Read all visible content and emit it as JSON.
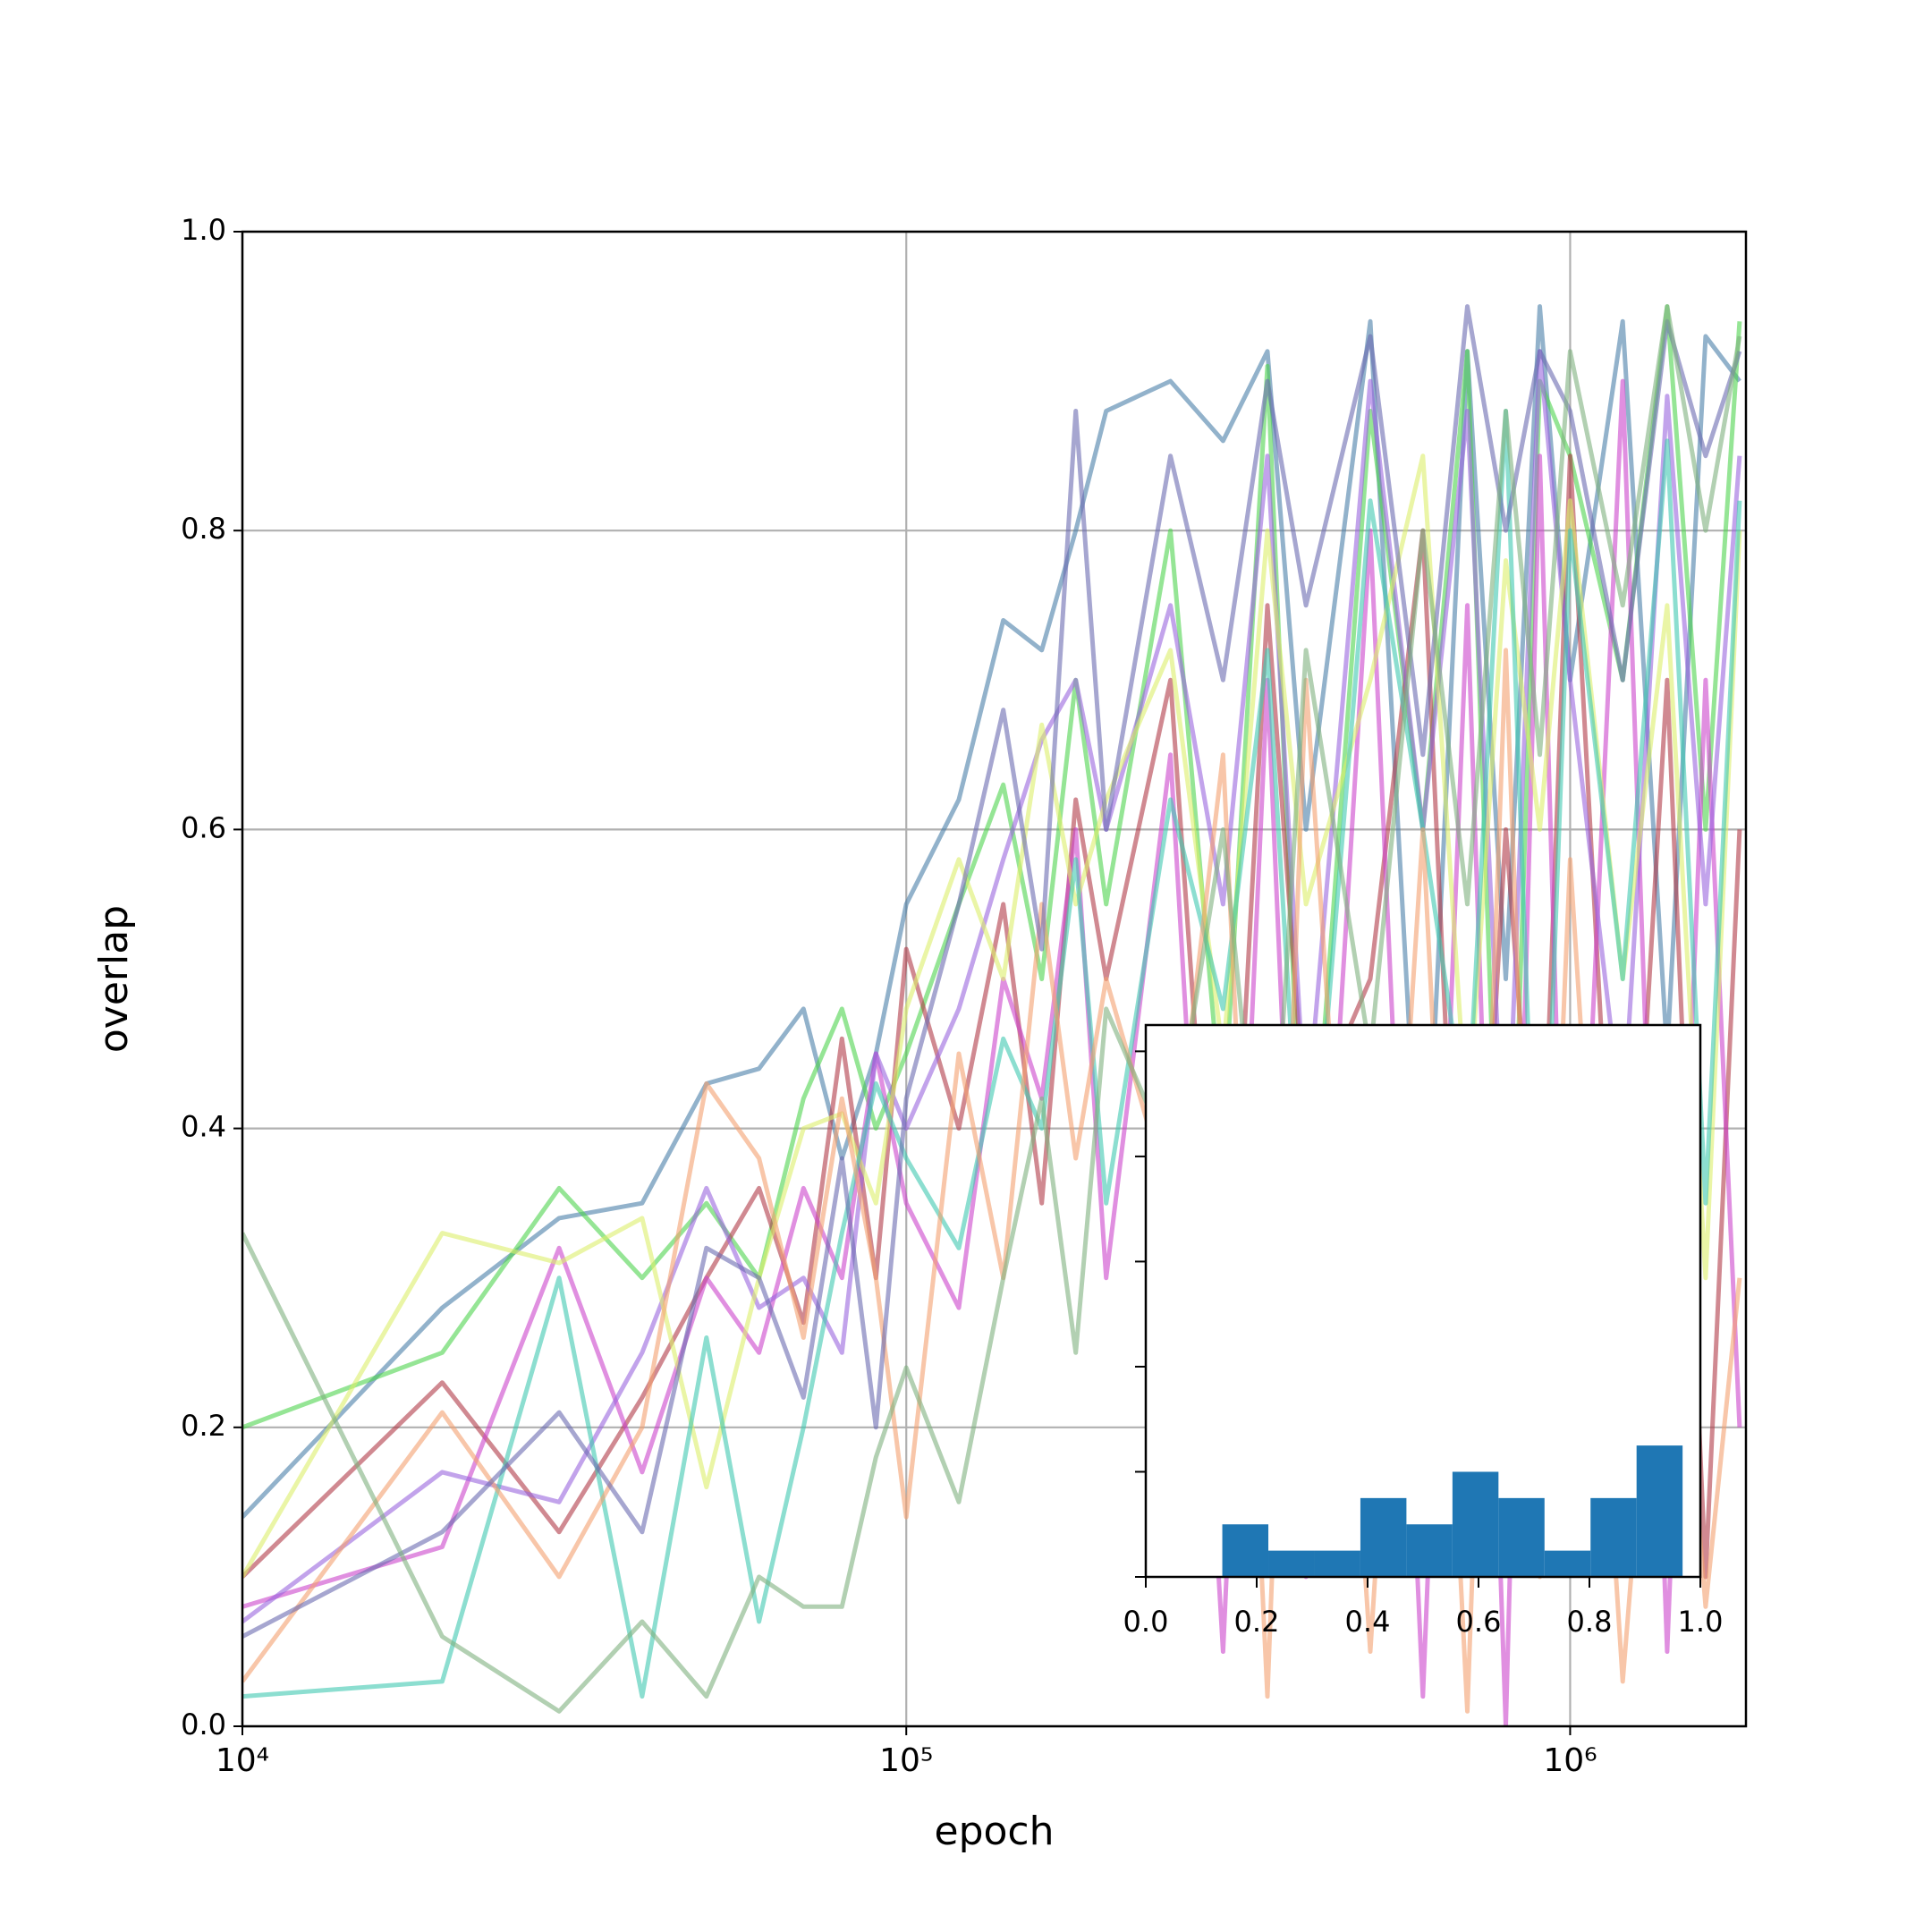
{
  "chart_data": [
    {
      "type": "line",
      "xlabel": "epoch",
      "ylabel": "overlap",
      "log_x": true,
      "grid": true,
      "xlim": [
        10000,
        1840000
      ],
      "ylim": [
        0,
        1
      ],
      "xticks": [
        {
          "value": 10000,
          "label": "10⁴"
        },
        {
          "value": 100000,
          "label": "10⁵"
        },
        {
          "value": 1000000,
          "label": "10⁶"
        }
      ],
      "yticks": [
        {
          "value": 0,
          "label": "0.0"
        },
        {
          "value": 0.2,
          "label": "0.2"
        },
        {
          "value": 0.4,
          "label": "0.4"
        },
        {
          "value": 0.6,
          "label": "0.6"
        },
        {
          "value": 0.8,
          "label": "0.8"
        },
        {
          "value": 1,
          "label": "1.0"
        }
      ],
      "x": [
        10000,
        20000,
        30000,
        40000,
        50000,
        60000,
        70000,
        80000,
        90000,
        100000,
        120000,
        140000,
        160000,
        180000,
        200000,
        250000,
        300000,
        350000,
        400000,
        500000,
        600000,
        700000,
        800000,
        900000,
        1000000,
        1200000,
        1400000,
        1600000,
        1800000
      ],
      "series": [
        {
          "color": "#4a7fa8",
          "values": [
            0.14,
            0.28,
            0.34,
            0.35,
            0.43,
            0.44,
            0.48,
            0.38,
            0.45,
            0.55,
            0.62,
            0.74,
            0.72,
            0.8,
            0.88,
            0.9,
            0.86,
            0.92,
            0.6,
            0.94,
            0.3,
            0.92,
            0.5,
            0.95,
            0.7,
            0.94,
            0.45,
            0.93,
            0.9
          ]
        },
        {
          "color": "#4fd44f",
          "values": [
            0.2,
            0.25,
            0.36,
            0.3,
            0.35,
            0.3,
            0.42,
            0.48,
            0.4,
            0.45,
            0.55,
            0.63,
            0.5,
            0.7,
            0.55,
            0.8,
            0.4,
            0.91,
            0.3,
            0.88,
            0.6,
            0.92,
            0.2,
            0.9,
            0.85,
            0.7,
            0.95,
            0.6,
            0.94
          ]
        },
        {
          "color": "#b03a48",
          "values": [
            0.1,
            0.23,
            0.13,
            0.22,
            0.3,
            0.36,
            0.27,
            0.46,
            0.3,
            0.52,
            0.4,
            0.55,
            0.35,
            0.62,
            0.5,
            0.7,
            0.2,
            0.75,
            0.4,
            0.5,
            0.8,
            0.15,
            0.6,
            0.3,
            0.85,
            0.2,
            0.7,
            0.1,
            0.6
          ]
        },
        {
          "color": "#cc44cc",
          "values": [
            0.08,
            0.12,
            0.32,
            0.17,
            0.3,
            0.25,
            0.36,
            0.3,
            0.45,
            0.35,
            0.28,
            0.5,
            0.42,
            0.6,
            0.3,
            0.65,
            0.05,
            0.7,
            0.1,
            0.8,
            0.02,
            0.75,
            0.0,
            0.85,
            0.15,
            0.9,
            0.05,
            0.7,
            0.2
          ]
        },
        {
          "color": "#9966dd",
          "values": [
            0.07,
            0.17,
            0.15,
            0.25,
            0.36,
            0.28,
            0.3,
            0.25,
            0.45,
            0.4,
            0.48,
            0.58,
            0.66,
            0.7,
            0.6,
            0.75,
            0.55,
            0.85,
            0.4,
            0.9,
            0.6,
            0.88,
            0.35,
            0.92,
            0.7,
            0.4,
            0.89,
            0.55,
            0.85
          ]
        },
        {
          "color": "#dcef6a",
          "values": [
            0.1,
            0.33,
            0.31,
            0.34,
            0.16,
            0.3,
            0.4,
            0.41,
            0.35,
            0.48,
            0.58,
            0.5,
            0.67,
            0.55,
            0.62,
            0.72,
            0.45,
            0.8,
            0.55,
            0.7,
            0.85,
            0.4,
            0.78,
            0.6,
            0.82,
            0.5,
            0.75,
            0.3,
            0.8
          ]
        },
        {
          "color": "#40c8b0",
          "values": [
            0.02,
            0.03,
            0.3,
            0.02,
            0.26,
            0.07,
            0.2,
            0.33,
            0.43,
            0.38,
            0.32,
            0.46,
            0.4,
            0.58,
            0.35,
            0.62,
            0.48,
            0.72,
            0.3,
            0.82,
            0.6,
            0.4,
            0.88,
            0.25,
            0.8,
            0.5,
            0.86,
            0.35,
            0.82
          ]
        },
        {
          "color": "#f4a070",
          "values": [
            0.03,
            0.21,
            0.1,
            0.2,
            0.43,
            0.38,
            0.26,
            0.42,
            0.3,
            0.14,
            0.45,
            0.3,
            0.55,
            0.38,
            0.5,
            0.35,
            0.65,
            0.02,
            0.7,
            0.05,
            0.6,
            0.01,
            0.72,
            0.1,
            0.58,
            0.03,
            0.4,
            0.08,
            0.3
          ]
        },
        {
          "color": "#6a6ab0",
          "values": [
            0.06,
            0.13,
            0.21,
            0.13,
            0.32,
            0.3,
            0.22,
            0.38,
            0.2,
            0.42,
            0.55,
            0.68,
            0.52,
            0.88,
            0.6,
            0.85,
            0.7,
            0.9,
            0.75,
            0.93,
            0.65,
            0.95,
            0.8,
            0.92,
            0.88,
            0.7,
            0.94,
            0.85,
            0.92
          ]
        },
        {
          "color": "#7fb07f",
          "values": [
            0.33,
            0.06,
            0.01,
            0.07,
            0.02,
            0.1,
            0.08,
            0.08,
            0.18,
            0.24,
            0.15,
            0.3,
            0.42,
            0.25,
            0.48,
            0.38,
            0.6,
            0.3,
            0.72,
            0.45,
            0.8,
            0.55,
            0.88,
            0.65,
            0.92,
            0.75,
            0.95,
            0.8,
            0.93
          ]
        }
      ]
    },
    {
      "type": "histogram",
      "color": "#1f77b4",
      "xlim": [
        0,
        1
      ],
      "ylim": [
        0,
        21
      ],
      "xticks": [
        {
          "value": 0,
          "label": "0.0"
        },
        {
          "value": 0.2,
          "label": "0.2"
        },
        {
          "value": 0.4,
          "label": "0.4"
        },
        {
          "value": 0.6,
          "label": "0.6"
        },
        {
          "value": 0.8,
          "label": "0.8"
        },
        {
          "value": 1,
          "label": "1.0"
        }
      ],
      "yticks": [
        0,
        4,
        8,
        12,
        16,
        20
      ],
      "bins": [
        0.138,
        0.221,
        0.304,
        0.387,
        0.47,
        0.553,
        0.636,
        0.719,
        0.802,
        0.885,
        0.968
      ],
      "counts": [
        2,
        1,
        1,
        3,
        2,
        4,
        3,
        1,
        3,
        5
      ]
    }
  ]
}
